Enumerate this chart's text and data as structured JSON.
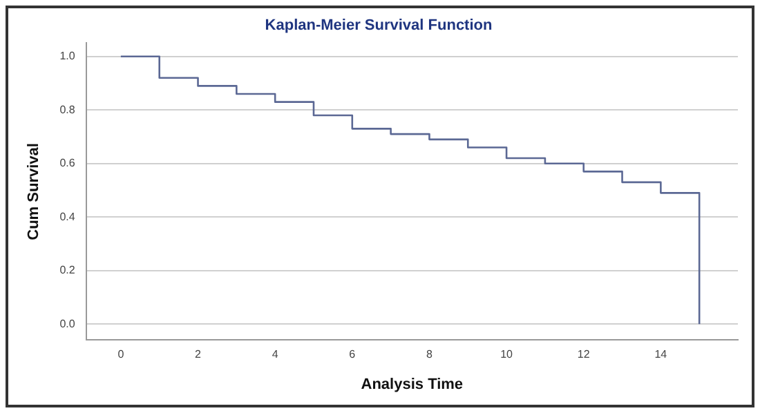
{
  "chart_data": {
    "type": "step",
    "title": "Kaplan-Meier Survival Function",
    "xlabel": "Analysis Time",
    "ylabel": "Cum Survival",
    "x": [
      0,
      1,
      2,
      3,
      4,
      5,
      6,
      7,
      8,
      9,
      10,
      11,
      12,
      13,
      14,
      15
    ],
    "series": [
      {
        "color": "#5b6894",
        "values": [
          1.0,
          0.92,
          0.89,
          0.86,
          0.83,
          0.78,
          0.73,
          0.71,
          0.69,
          0.66,
          0.62,
          0.6,
          0.57,
          0.53,
          0.49,
          0.0
        ]
      }
    ],
    "xlim": [
      -0.9,
      16
    ],
    "xticks": [
      0,
      2,
      4,
      6,
      8,
      10,
      12,
      14
    ],
    "ylim": [
      -0.06,
      1.05
    ],
    "yticks": [
      {
        "value": 0,
        "label": "0.0"
      },
      {
        "value": 0.2,
        "label": "0.2"
      },
      {
        "value": 0.4,
        "label": "0.4"
      },
      {
        "value": 0.6,
        "label": "0.6"
      },
      {
        "value": 0.8,
        "label": "0.8"
      },
      {
        "value": 1,
        "label": "1.0"
      }
    ],
    "grid": "y",
    "legend": false,
    "marker": "none",
    "line_style": "solid"
  }
}
